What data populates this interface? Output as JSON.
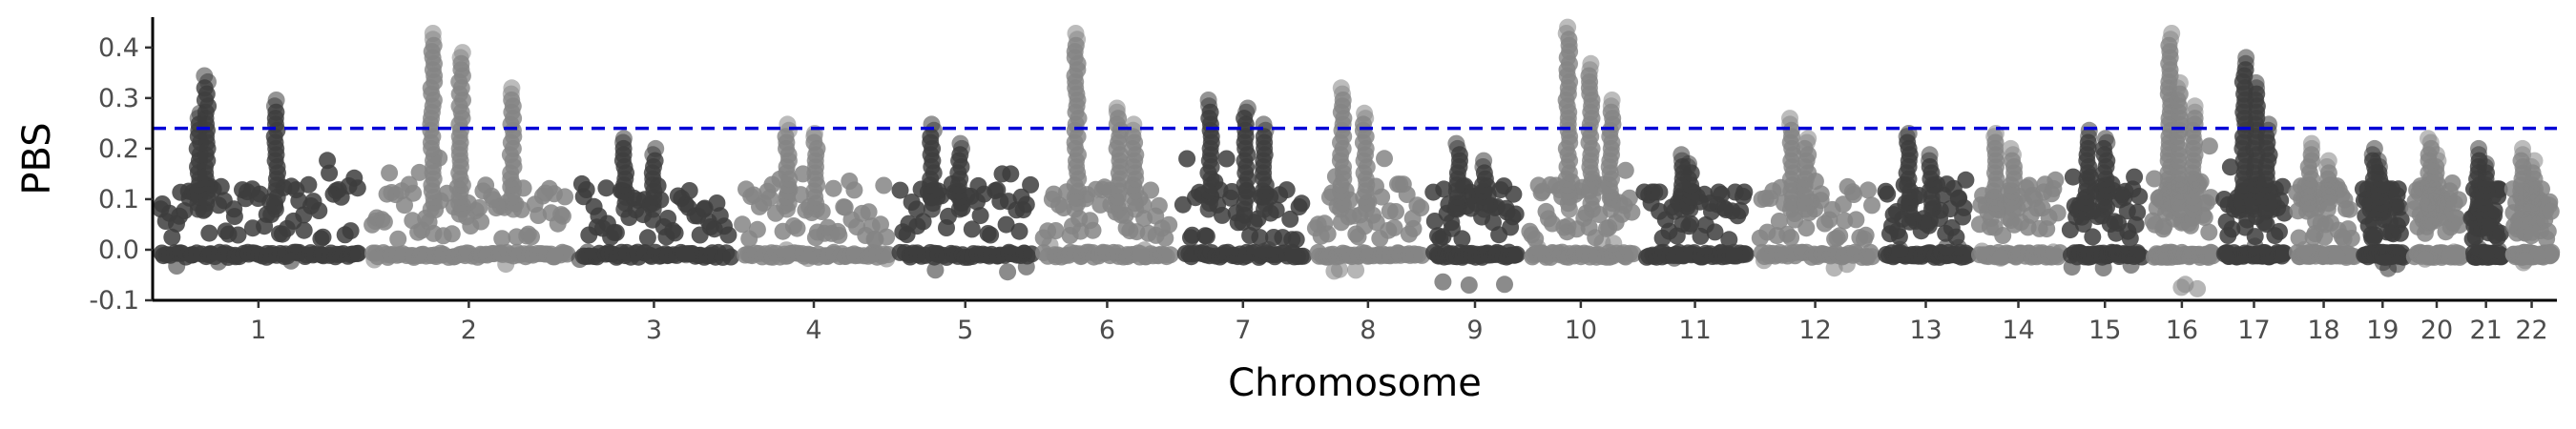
{
  "chart_data": {
    "type": "scatter",
    "title": "",
    "xlabel": "Chromosome",
    "ylabel": "PBS",
    "ylim": [
      -0.1,
      0.46
    ],
    "y_ticks": [
      "0.4",
      "0.3",
      "0.2",
      "0.1",
      "0.0",
      "-0.1"
    ],
    "y_tick_values": [
      0.4,
      0.3,
      0.2,
      0.1,
      0.0,
      -0.1
    ],
    "threshold": 0.24,
    "threshold_color": "#0000d6",
    "grid": false,
    "legend": "none",
    "colors": {
      "dark": "#3d3d3d",
      "light": "#858585"
    },
    "chromosomes": [
      {
        "label": "1",
        "span": [
          0.0,
          0.088
        ],
        "max": 0.35,
        "min": -0.04,
        "peaks": [
          0.35,
          0.3,
          0.27
        ]
      },
      {
        "label": "2",
        "span": [
          0.088,
          0.175
        ],
        "max": 0.43,
        "min": -0.03,
        "peaks": [
          0.43,
          0.39,
          0.32
        ]
      },
      {
        "label": "3",
        "span": [
          0.175,
          0.242
        ],
        "max": 0.22,
        "min": -0.02,
        "peaks": [
          0.22,
          0.2
        ]
      },
      {
        "label": "4",
        "span": [
          0.242,
          0.308
        ],
        "max": 0.25,
        "min": -0.02,
        "peaks": [
          0.25,
          0.23
        ]
      },
      {
        "label": "5",
        "span": [
          0.308,
          0.368
        ],
        "max": 0.25,
        "min": -0.05,
        "peaks": [
          0.25,
          0.21
        ]
      },
      {
        "label": "6",
        "span": [
          0.368,
          0.426
        ],
        "max": 0.43,
        "min": -0.01,
        "peaks": [
          0.43,
          0.28,
          0.25
        ]
      },
      {
        "label": "7",
        "span": [
          0.426,
          0.481
        ],
        "max": 0.3,
        "min": -0.02,
        "peaks": [
          0.3,
          0.28,
          0.25
        ]
      },
      {
        "label": "8",
        "span": [
          0.481,
          0.53
        ],
        "max": 0.32,
        "min": -0.05,
        "peaks": [
          0.32,
          0.27
        ]
      },
      {
        "label": "9",
        "span": [
          0.53,
          0.57
        ],
        "max": 0.21,
        "min": -0.07,
        "peaks": [
          0.21,
          0.18
        ]
      },
      {
        "label": "10",
        "span": [
          0.57,
          0.618
        ],
        "max": 0.44,
        "min": 0.0,
        "peaks": [
          0.44,
          0.37,
          0.3
        ]
      },
      {
        "label": "11",
        "span": [
          0.618,
          0.665
        ],
        "max": 0.19,
        "min": -0.02,
        "peaks": [
          0.19,
          0.17
        ]
      },
      {
        "label": "12",
        "span": [
          0.665,
          0.718
        ],
        "max": 0.26,
        "min": -0.04,
        "peaks": [
          0.26,
          0.22
        ]
      },
      {
        "label": "13",
        "span": [
          0.718,
          0.757
        ],
        "max": 0.23,
        "min": -0.01,
        "peaks": [
          0.23,
          0.19
        ]
      },
      {
        "label": "14",
        "span": [
          0.757,
          0.795
        ],
        "max": 0.23,
        "min": -0.02,
        "peaks": [
          0.23,
          0.2
        ]
      },
      {
        "label": "15",
        "span": [
          0.795,
          0.829
        ],
        "max": 0.24,
        "min": -0.04,
        "peaks": [
          0.24,
          0.22
        ]
      },
      {
        "label": "16",
        "span": [
          0.829,
          0.859
        ],
        "max": 0.43,
        "min": -0.08,
        "peaks": [
          0.43,
          0.33,
          0.29
        ]
      },
      {
        "label": "17",
        "span": [
          0.859,
          0.889
        ],
        "max": 0.38,
        "min": -0.01,
        "peaks": [
          0.38,
          0.33,
          0.25
        ]
      },
      {
        "label": "18",
        "span": [
          0.889,
          0.917
        ],
        "max": 0.21,
        "min": -0.02,
        "peaks": [
          0.21,
          0.18
        ]
      },
      {
        "label": "19",
        "span": [
          0.917,
          0.938
        ],
        "max": 0.2,
        "min": -0.04,
        "peaks": [
          0.2,
          0.18
        ]
      },
      {
        "label": "20",
        "span": [
          0.938,
          0.962
        ],
        "max": 0.22,
        "min": -0.02,
        "peaks": [
          0.22,
          0.19
        ]
      },
      {
        "label": "21",
        "span": [
          0.962,
          0.979
        ],
        "max": 0.2,
        "min": -0.01,
        "peaks": [
          0.2,
          0.17
        ]
      },
      {
        "label": "22",
        "span": [
          0.979,
          1.0
        ],
        "max": 0.2,
        "min": -0.03,
        "peaks": [
          0.2,
          0.18
        ]
      }
    ]
  }
}
